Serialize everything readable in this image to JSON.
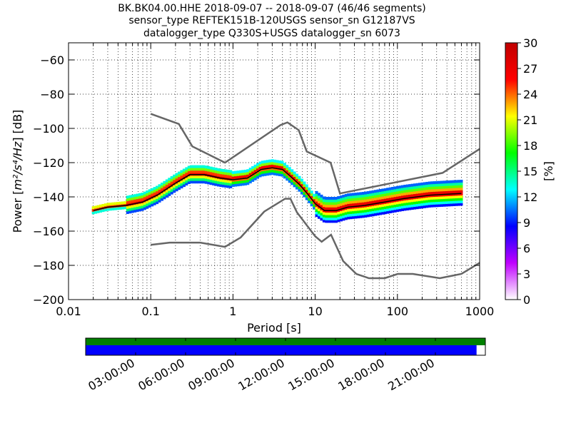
{
  "chart_data": [
    {
      "type": "heatmap",
      "title_lines": [
        "BK.BK04.00.HHE   2018-09-07 -- 2018-09-07  (46/46 segments)",
        "sensor_type REFTEK151B-120USGS sensor_sn G12187VS",
        "datalogger_type Q330S+USGS datalogger_sn 6073"
      ],
      "xlabel": "Period [s]",
      "ylabel_prefix": "Power [",
      "ylabel_math": "m²/s⁴/Hz",
      "ylabel_suffix": "] [dB]",
      "xscale": "log",
      "xlim": [
        0.01,
        1000
      ],
      "ylim": [
        -200,
        -50
      ],
      "grid": true,
      "x_ticks": [
        0.01,
        0.1,
        1,
        10,
        100,
        1000
      ],
      "x_tick_labels": [
        "0.01",
        "0.1",
        "1",
        "10",
        "100",
        "1000"
      ],
      "y_ticks": [
        -200,
        -180,
        -160,
        -140,
        -120,
        -100,
        -80,
        -60
      ],
      "y_tick_labels": [
        "−200",
        "−180",
        "−160",
        "−140",
        "−120",
        "−100",
        "−80",
        "−60"
      ],
      "noise_model_high": {
        "x": [
          0.1,
          0.22,
          0.32,
          0.8,
          3.8,
          4.6,
          6.3,
          7.9,
          15.4,
          20,
          354,
          1000
        ],
        "y": [
          -91.5,
          -97.4,
          -110.5,
          -120,
          -98,
          -96.5,
          -101,
          -113.5,
          -120,
          -138,
          -126,
          -112
        ]
      },
      "noise_model_low": {
        "x": [
          0.1,
          0.17,
          0.4,
          0.8,
          1.24,
          2.4,
          4.3,
          5,
          6,
          10,
          12,
          15.6,
          21.9,
          31.6,
          45,
          70,
          101,
          154,
          328,
          600,
          1000
        ],
        "y": [
          -168,
          -166.7,
          -166.7,
          -169.2,
          -163.7,
          -148.6,
          -141.1,
          -141.1,
          -149,
          -163,
          -166.2,
          -162.1,
          -177.5,
          -185,
          -187.5,
          -187.5,
          -185,
          -185,
          -187.5,
          -185,
          -178.5
        ]
      },
      "mode_curve": {
        "x": [
          0.02,
          0.03,
          0.05,
          0.08,
          0.12,
          0.2,
          0.3,
          0.45,
          0.7,
          1,
          1.5,
          2.2,
          3,
          4,
          5,
          6.5,
          8,
          10,
          13,
          18,
          25,
          40,
          70,
          120,
          250,
          600
        ],
        "y": [
          -148,
          -146,
          -145,
          -143,
          -139,
          -132,
          -127,
          -127,
          -129,
          -130,
          -129,
          -124,
          -123,
          -124,
          -128,
          -133,
          -138,
          -144,
          -148,
          -148,
          -146,
          -145,
          -143,
          -141,
          -139,
          -138
        ]
      },
      "colorbar": {
        "label": "[%]",
        "ticks": [
          0,
          3,
          6,
          9,
          12,
          15,
          18,
          21,
          24,
          27,
          30
        ],
        "range": [
          0,
          30
        ],
        "colormap": [
          "#ffffff",
          "#c000ff",
          "#0000ff",
          "#00ffff",
          "#00ff00",
          "#ffff00",
          "#ff0000",
          "#c00000"
        ]
      },
      "timeline": {
        "tick_labels": [
          "03:00:00",
          "06:00:00",
          "09:00:00",
          "12:00:00",
          "15:00:00",
          "18:00:00",
          "21:00:00"
        ],
        "coverage_fraction": 0.978,
        "data_color": "#008000",
        "segment_color": "#0000ff"
      }
    }
  ]
}
